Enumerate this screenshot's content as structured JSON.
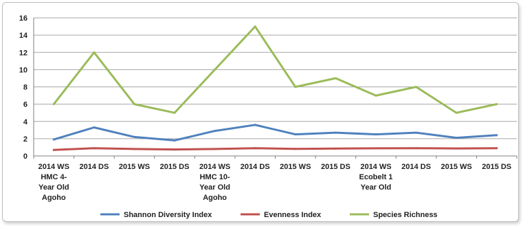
{
  "chart_data": {
    "type": "line",
    "title": "",
    "xlabel": "",
    "ylabel": "",
    "ylim": [
      0,
      16
    ],
    "yticks": [
      0,
      2,
      4,
      6,
      8,
      10,
      12,
      14,
      16
    ],
    "grid": true,
    "legend_position": "bottom",
    "categories": [
      [
        "2014 WS",
        "HMC 4-",
        "Year Old",
        "Agoho"
      ],
      [
        "2014 DS"
      ],
      [
        "2015 WS"
      ],
      [
        "2015 DS"
      ],
      [
        "2014 WS",
        "HMC 10-",
        "Year Old",
        "Agoho"
      ],
      [
        "2014 DS"
      ],
      [
        "2015 WS"
      ],
      [
        "2015 DS"
      ],
      [
        "2014 WS",
        "Ecobelt 1",
        "Year Old"
      ],
      [
        "2014 DS"
      ],
      [
        "2015 WS"
      ],
      [
        "2015 DS"
      ]
    ],
    "series": [
      {
        "name": "Shannon Diversity Index",
        "color": "#4f81bd",
        "values": [
          1.9,
          3.3,
          2.2,
          1.8,
          2.9,
          3.6,
          2.5,
          2.7,
          2.5,
          2.7,
          2.1,
          2.4
        ]
      },
      {
        "name": "Evenness Index",
        "color": "#c0504d",
        "values": [
          0.7,
          0.9,
          0.8,
          0.75,
          0.8,
          0.9,
          0.82,
          0.85,
          0.88,
          0.9,
          0.87,
          0.9
        ]
      },
      {
        "name": "Species Richness",
        "color": "#9bbb59",
        "values": [
          6,
          12,
          6,
          5,
          10,
          15,
          8,
          9,
          7,
          8,
          5,
          6
        ]
      }
    ]
  }
}
